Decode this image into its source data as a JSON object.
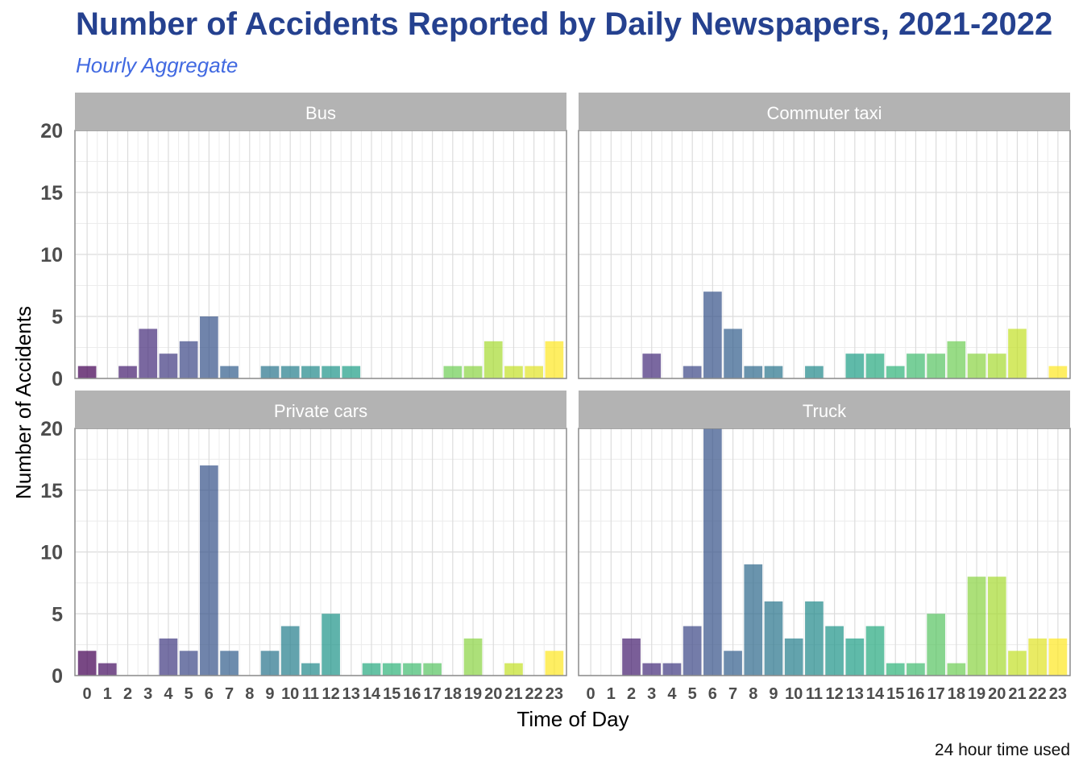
{
  "title": "Number of Accidents Reported by Daily Newspapers, 2021-2022",
  "subtitle": "Hourly Aggregate",
  "caption": "24 hour time used",
  "colors": {
    "title": "#25418f",
    "subtitle": "#4169e1",
    "strip_background": "#b3b3b3",
    "strip_text": "#ffffff",
    "grid": "#dcdcdc",
    "panel_border": "#8c8c8c",
    "axis_text": "#4d4d4d",
    "palette": "viridis"
  },
  "chart_data": {
    "type": "bar",
    "faceted": true,
    "facet_layout": "2x2",
    "xlabel": "Time of Day",
    "ylabel": "Number of Accidents",
    "x": [
      0,
      1,
      2,
      3,
      4,
      5,
      6,
      7,
      8,
      9,
      10,
      11,
      12,
      13,
      14,
      15,
      16,
      17,
      18,
      19,
      20,
      21,
      22,
      23
    ],
    "x_tick_labels": [
      "0",
      "1",
      "2",
      "3",
      "4",
      "5",
      "6",
      "7",
      "8",
      "9",
      "10",
      "11",
      "12",
      "13",
      "14",
      "15",
      "16",
      "17",
      "18",
      "19",
      "20",
      "21",
      "22",
      "23"
    ],
    "y_ticks": [
      0,
      5,
      10,
      15,
      20
    ],
    "ylim": [
      0,
      20
    ],
    "grid": true,
    "legend": "none",
    "fill": "viridis by hour, alpha 0.7",
    "series": [
      {
        "name": "Bus",
        "values": [
          1,
          0,
          1,
          4,
          2,
          3,
          5,
          1,
          0,
          1,
          1,
          1,
          1,
          1,
          0,
          0,
          0,
          0,
          1,
          1,
          3,
          1,
          1,
          3
        ]
      },
      {
        "name": "Commuter taxi",
        "values": [
          0,
          0,
          0,
          2,
          0,
          1,
          7,
          4,
          1,
          1,
          0,
          1,
          0,
          2,
          2,
          1,
          2,
          2,
          3,
          2,
          2,
          4,
          0,
          1
        ]
      },
      {
        "name": "Private cars",
        "values": [
          2,
          1,
          0,
          0,
          3,
          2,
          17,
          2,
          0,
          2,
          4,
          1,
          5,
          0,
          1,
          1,
          1,
          1,
          0,
          3,
          0,
          1,
          0,
          2
        ]
      },
      {
        "name": "Truck",
        "values": [
          0,
          0,
          3,
          1,
          1,
          4,
          20,
          2,
          9,
          6,
          3,
          6,
          4,
          3,
          4,
          1,
          1,
          5,
          1,
          8,
          8,
          2,
          3,
          3
        ]
      }
    ]
  }
}
